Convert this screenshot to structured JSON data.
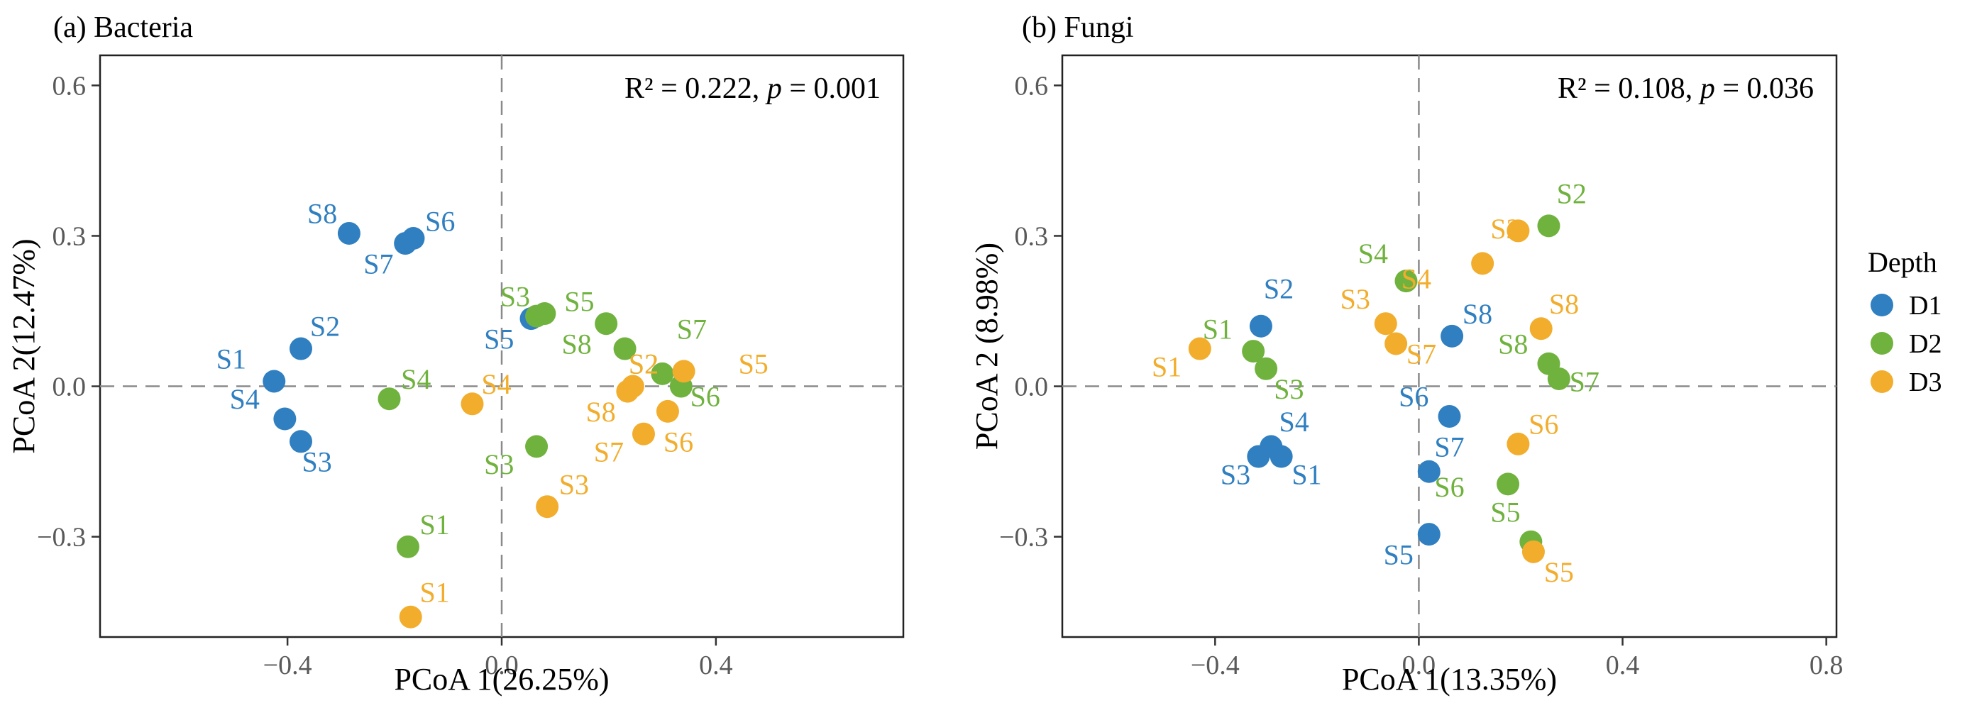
{
  "chart_data": [
    {
      "type": "scatter",
      "title": "(a) Bacteria",
      "xlabel": "PCoA 1(26.25%)",
      "ylabel": "PCoA 2(12.47%)",
      "annotation": {
        "r2": "R² = 0.222, ",
        "p_label": "p",
        "p_value": " = 0.001"
      },
      "xlim": [
        -0.75,
        0.75
      ],
      "ylim": [
        -0.5,
        0.66
      ],
      "xticks": [
        -0.4,
        0.0,
        0.4
      ],
      "xtick_labels": [
        "−0.4",
        "0.0",
        "0.4"
      ],
      "yticks": [
        -0.3,
        0.0,
        0.3,
        0.6
      ],
      "ytick_labels": [
        "−0.3",
        "0.0",
        "0.3",
        "0.6"
      ],
      "series": [
        {
          "name": "D1",
          "points": [
            {
              "label": "S1",
              "x": -0.425,
              "y": 0.01,
              "lx": -0.505,
              "ly": 0.055
            },
            {
              "label": "S2",
              "x": -0.375,
              "y": 0.075,
              "lx": -0.33,
              "ly": 0.12
            },
            {
              "label": "S3",
              "x": -0.375,
              "y": -0.11,
              "lx": -0.345,
              "ly": -0.15
            },
            {
              "label": "S4",
              "x": -0.405,
              "y": -0.065,
              "lx": -0.48,
              "ly": -0.025
            },
            {
              "label": "S5",
              "x": 0.055,
              "y": 0.135,
              "lx": -0.005,
              "ly": 0.095
            },
            {
              "label": "S6",
              "x": -0.165,
              "y": 0.295,
              "lx": -0.115,
              "ly": 0.33
            },
            {
              "label": "S7",
              "x": -0.18,
              "y": 0.285,
              "lx": -0.23,
              "ly": 0.245
            },
            {
              "label": "S8",
              "x": -0.285,
              "y": 0.305,
              "lx": -0.335,
              "ly": 0.345
            }
          ]
        },
        {
          "name": "D2",
          "points": [
            {
              "label": "S1",
              "x": -0.175,
              "y": -0.32,
              "lx": -0.125,
              "ly": -0.275
            },
            {
              "label": "S2",
              "x": 0.335,
              "y": 0.0,
              "lx": 0.265,
              "ly": 0.045
            },
            {
              "label": "S3",
              "x": 0.065,
              "y": -0.12,
              "lx": -0.005,
              "ly": -0.155
            },
            {
              "label": "S4",
              "x": -0.21,
              "y": -0.025,
              "lx": -0.16,
              "ly": 0.015
            },
            {
              "label": "S5",
              "x": 0.08,
              "y": 0.145,
              "lx": 0.145,
              "ly": 0.17
            },
            {
              "label": "S6",
              "x": 0.3,
              "y": 0.025,
              "lx": 0.38,
              "ly": -0.02
            },
            {
              "label": "S7",
              "x": 0.23,
              "y": 0.075,
              "lx": 0.355,
              "ly": 0.115
            },
            {
              "label": "S8",
              "x": 0.195,
              "y": 0.125,
              "lx": 0.14,
              "ly": 0.085
            },
            {
              "label": "S3",
              "x": 0.065,
              "y": 0.14,
              "lx": 0.025,
              "ly": 0.18
            }
          ]
        },
        {
          "name": "D3",
          "points": [
            {
              "label": "S1",
              "x": -0.17,
              "y": -0.46,
              "lx": -0.125,
              "ly": -0.41
            },
            {
              "label": "S2",
              "x": 0.245,
              "y": 0.0,
              "lx": 0.265,
              "ly": 0.045
            },
            {
              "label": "S3",
              "x": 0.085,
              "y": -0.24,
              "lx": 0.135,
              "ly": -0.195
            },
            {
              "label": "S4",
              "x": -0.055,
              "y": -0.035,
              "lx": -0.01,
              "ly": 0.005
            },
            {
              "label": "S5",
              "x": 0.34,
              "y": 0.03,
              "lx": 0.47,
              "ly": 0.045
            },
            {
              "label": "S6",
              "x": 0.31,
              "y": -0.05,
              "lx": 0.33,
              "ly": -0.11
            },
            {
              "label": "S7",
              "x": 0.265,
              "y": -0.095,
              "lx": 0.2,
              "ly": -0.13
            },
            {
              "label": "S8",
              "x": 0.235,
              "y": -0.01,
              "lx": 0.185,
              "ly": -0.05
            }
          ]
        }
      ]
    },
    {
      "type": "scatter",
      "title": "(b) Fungi",
      "xlabel": "PCoA 1(13.35%)",
      "ylabel": "PCoA 2 (8.98%)",
      "annotation": {
        "r2": "R² = 0.108, ",
        "p_label": "p",
        "p_value": " = 0.036"
      },
      "xlim": [
        -0.7,
        0.82
      ],
      "ylim": [
        -0.5,
        0.66
      ],
      "xticks": [
        -0.4,
        0.0,
        0.4,
        0.8
      ],
      "xtick_labels": [
        "−0.4",
        "0.0",
        "0.4",
        "0.8"
      ],
      "yticks": [
        -0.3,
        0.0,
        0.3,
        0.6
      ],
      "ytick_labels": [
        "−0.3",
        "0.0",
        "0.3",
        "0.6"
      ],
      "series": [
        {
          "name": "D1",
          "points": [
            {
              "label": "S1",
              "x": -0.27,
              "y": -0.14,
              "lx": -0.22,
              "ly": -0.175
            },
            {
              "label": "S2",
              "x": -0.31,
              "y": 0.12,
              "lx": -0.275,
              "ly": 0.195
            },
            {
              "label": "S3",
              "x": -0.315,
              "y": -0.14,
              "lx": -0.36,
              "ly": -0.175
            },
            {
              "label": "S4",
              "x": -0.29,
              "y": -0.12,
              "lx": -0.245,
              "ly": -0.07
            },
            {
              "label": "S5",
              "x": 0.02,
              "y": -0.295,
              "lx": -0.04,
              "ly": -0.335
            },
            {
              "label": "S6",
              "x": 0.06,
              "y": -0.06,
              "lx": -0.01,
              "ly": -0.02
            },
            {
              "label": "S7",
              "x": 0.02,
              "y": -0.17,
              "lx": 0.06,
              "ly": -0.12
            },
            {
              "label": "S8",
              "x": 0.065,
              "y": 0.1,
              "lx": 0.115,
              "ly": 0.145
            }
          ]
        },
        {
          "name": "D2",
          "points": [
            {
              "label": "S1",
              "x": -0.325,
              "y": 0.07,
              "lx": -0.395,
              "ly": 0.115
            },
            {
              "label": "S2",
              "x": 0.255,
              "y": 0.32,
              "lx": 0.3,
              "ly": 0.385
            },
            {
              "label": "S3",
              "x": -0.3,
              "y": 0.035,
              "lx": -0.255,
              "ly": -0.005
            },
            {
              "label": "S4",
              "x": -0.025,
              "y": 0.21,
              "lx": -0.09,
              "ly": 0.265
            },
            {
              "label": "S5",
              "x": 0.22,
              "y": -0.31,
              "lx": 0.17,
              "ly": -0.25
            },
            {
              "label": "S6",
              "x": 0.175,
              "y": -0.195,
              "lx": 0.06,
              "ly": -0.2
            },
            {
              "label": "S7",
              "x": 0.275,
              "y": 0.015,
              "lx": 0.325,
              "ly": 0.01
            },
            {
              "label": "S8",
              "x": 0.255,
              "y": 0.045,
              "lx": 0.185,
              "ly": 0.085
            }
          ]
        },
        {
          "name": "D3",
          "points": [
            {
              "label": "S1",
              "x": -0.43,
              "y": 0.075,
              "lx": -0.495,
              "ly": 0.04
            },
            {
              "label": "S2",
              "x": 0.195,
              "y": 0.31,
              "lx": 0.17,
              "ly": 0.315
            },
            {
              "label": "S3",
              "x": -0.065,
              "y": 0.125,
              "lx": -0.125,
              "ly": 0.175
            },
            {
              "label": "S4",
              "x": 0.125,
              "y": 0.245,
              "lx": -0.005,
              "ly": 0.215
            },
            {
              "label": "S5",
              "x": 0.225,
              "y": -0.33,
              "lx": 0.275,
              "ly": -0.37
            },
            {
              "label": "S6",
              "x": 0.195,
              "y": -0.115,
              "lx": 0.245,
              "ly": -0.075
            },
            {
              "label": "S7",
              "x": -0.045,
              "y": 0.085,
              "lx": 0.005,
              "ly": 0.065
            },
            {
              "label": "S8",
              "x": 0.24,
              "y": 0.115,
              "lx": 0.285,
              "ly": 0.165
            }
          ]
        }
      ]
    }
  ],
  "legend": {
    "title": "Depth",
    "items": [
      {
        "name": "D1",
        "color": "#2f7fc1"
      },
      {
        "name": "D2",
        "color": "#70b23e"
      },
      {
        "name": "D3",
        "color": "#f2ad2c"
      }
    ]
  }
}
